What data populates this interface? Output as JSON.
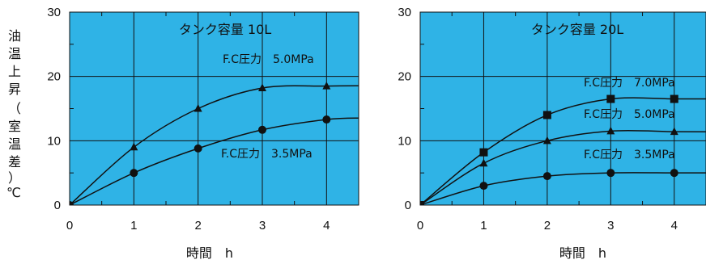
{
  "y_label_chars": [
    "油",
    "温",
    "上",
    "昇",
    "（",
    "室",
    "温",
    "差",
    "）"
  ],
  "y_unit": "℃",
  "colors": {
    "plot_bg": "#2fb3e6",
    "line": "#111111",
    "grid": "#111111"
  },
  "chart_data": [
    {
      "type": "line",
      "title": "タンク容量 10L",
      "xlabel": "時間　h",
      "ylabel": "油温上昇（室温差）℃",
      "xlim": [
        0,
        4.5
      ],
      "ylim": [
        0,
        30
      ],
      "xticks": [
        0,
        1,
        2,
        3,
        4
      ],
      "yticks": [
        0,
        10,
        20,
        30
      ],
      "grid": true,
      "series": [
        {
          "name": "F.C圧力　5.0MPa",
          "marker": "triangle",
          "x": [
            0,
            1,
            2,
            3,
            4
          ],
          "y": [
            0,
            9,
            15,
            18.2,
            18.5
          ]
        },
        {
          "name": "F.C圧力　3.5MPa",
          "marker": "circle",
          "x": [
            0,
            1,
            2,
            3,
            4
          ],
          "y": [
            0,
            5,
            8.8,
            11.7,
            13.3
          ]
        }
      ]
    },
    {
      "type": "line",
      "title": "タンク容量 20L",
      "xlabel": "時間　h",
      "ylabel": "",
      "xlim": [
        0,
        4.5
      ],
      "ylim": [
        0,
        30
      ],
      "xticks": [
        0,
        1,
        2,
        3,
        4
      ],
      "yticks": [
        0,
        10,
        20,
        30
      ],
      "grid": true,
      "series": [
        {
          "name": "F.C圧力　7.0MPa",
          "marker": "square",
          "x": [
            0,
            1,
            2,
            3,
            4
          ],
          "y": [
            0,
            8.2,
            14,
            16.5,
            16.5
          ]
        },
        {
          "name": "F.C圧力　5.0MPa",
          "marker": "triangle",
          "x": [
            0,
            1,
            2,
            3,
            4
          ],
          "y": [
            0,
            6.5,
            10,
            11.5,
            11.4
          ]
        },
        {
          "name": "F.C圧力　3.5MPa",
          "marker": "circle",
          "x": [
            0,
            1,
            2,
            3,
            4
          ],
          "y": [
            0,
            3,
            4.5,
            5,
            5
          ]
        }
      ]
    }
  ]
}
